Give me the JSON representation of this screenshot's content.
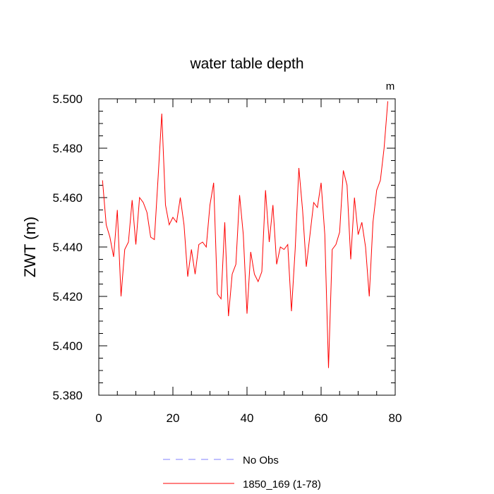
{
  "chart_data": {
    "type": "line",
    "title": "water table depth",
    "ylabel": "ZWT  (m)",
    "units": "m",
    "xlim": [
      0,
      80
    ],
    "ylim": [
      5.38,
      5.5
    ],
    "x_ticks": [
      0,
      20,
      40,
      60,
      80
    ],
    "y_ticks": [
      5.38,
      5.4,
      5.42,
      5.44,
      5.46,
      5.48,
      5.5
    ],
    "y_tick_labels": [
      "5.380",
      "5.400",
      "5.420",
      "5.440",
      "5.460",
      "5.480",
      "5.500"
    ],
    "grid": false,
    "legend_position": "bottom-center",
    "series": [
      {
        "name": "No Obs",
        "color": "#8080ff",
        "style": "dashed",
        "x": [],
        "values": []
      },
      {
        "name": "1850_169 (1-78)",
        "color": "#ff0000",
        "style": "solid",
        "x": [
          1,
          2,
          3,
          4,
          5,
          6,
          7,
          8,
          9,
          10,
          11,
          12,
          13,
          14,
          15,
          16,
          17,
          18,
          19,
          20,
          21,
          22,
          23,
          24,
          25,
          26,
          27,
          28,
          29,
          30,
          31,
          32,
          33,
          34,
          35,
          36,
          37,
          38,
          39,
          40,
          41,
          42,
          43,
          44,
          45,
          46,
          47,
          48,
          49,
          50,
          51,
          52,
          53,
          54,
          55,
          56,
          57,
          58,
          59,
          60,
          61,
          62,
          63,
          64,
          65,
          66,
          67,
          68,
          69,
          70,
          71,
          72,
          73,
          74,
          75,
          76,
          77,
          78
        ],
        "values": [
          5.467,
          5.449,
          5.444,
          5.436,
          5.455,
          5.42,
          5.439,
          5.442,
          5.459,
          5.441,
          5.46,
          5.458,
          5.454,
          5.444,
          5.443,
          5.468,
          5.494,
          5.457,
          5.449,
          5.452,
          5.45,
          5.46,
          5.449,
          5.428,
          5.439,
          5.429,
          5.441,
          5.442,
          5.44,
          5.457,
          5.466,
          5.421,
          5.419,
          5.45,
          5.412,
          5.429,
          5.433,
          5.461,
          5.445,
          5.413,
          5.438,
          5.429,
          5.426,
          5.43,
          5.463,
          5.442,
          5.457,
          5.433,
          5.44,
          5.439,
          5.441,
          5.414,
          5.439,
          5.472,
          5.455,
          5.432,
          5.445,
          5.458,
          5.456,
          5.466,
          5.445,
          5.391,
          5.439,
          5.441,
          5.446,
          5.471,
          5.465,
          5.435,
          5.46,
          5.445,
          5.45,
          5.44,
          5.42,
          5.45,
          5.463,
          5.467,
          5.48,
          5.499
        ]
      }
    ]
  }
}
